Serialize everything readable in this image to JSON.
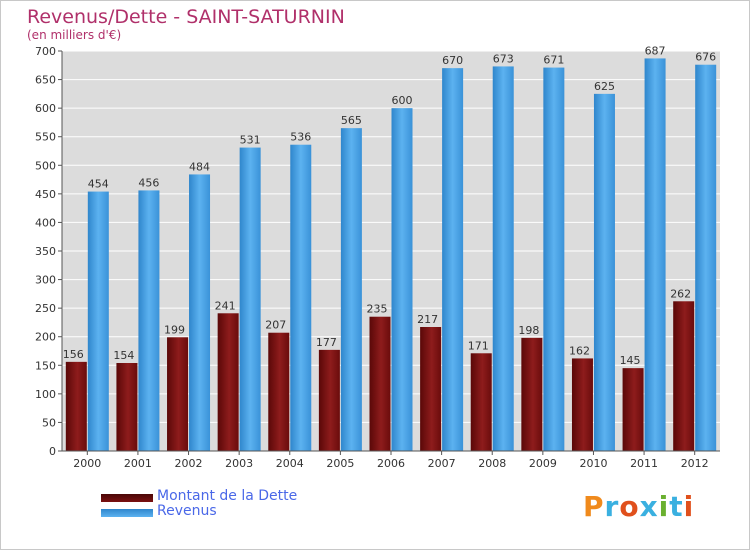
{
  "title": "Revenus/Dette - SAINT-SATURNIN",
  "subtitle": "(en milliers d'€)",
  "brand": {
    "text": "Proxiti",
    "letters": [
      "P",
      "r",
      "o",
      "x",
      "i",
      "t",
      "i"
    ],
    "colors": [
      "#f08a1c",
      "#3ab0e0",
      "#e0501c",
      "#3ab0e0",
      "#6ab030",
      "#3ab0e0",
      "#e0501c"
    ]
  },
  "chart_data": {
    "type": "bar",
    "title": "Revenus/Dette - SAINT-SATURNIN",
    "ylabel": "(en milliers d'€)",
    "xlabel": "",
    "categories": [
      "2000",
      "2001",
      "2002",
      "2003",
      "2004",
      "2005",
      "2006",
      "2007",
      "2008",
      "2009",
      "2010",
      "2011",
      "2012"
    ],
    "series": [
      {
        "name": "Montant de la Dette",
        "color": "#7a1010",
        "values": [
          156,
          154,
          199,
          241,
          207,
          177,
          235,
          217,
          171,
          198,
          162,
          145,
          262
        ]
      },
      {
        "name": "Revenus",
        "color": "#3d9be0",
        "values": [
          454,
          456,
          484,
          531,
          536,
          565,
          600,
          670,
          673,
          671,
          625,
          687,
          676
        ]
      }
    ],
    "ylim": [
      0,
      700
    ],
    "yticks": [
      0,
      50,
      100,
      150,
      200,
      250,
      300,
      350,
      400,
      450,
      500,
      550,
      600,
      650,
      700
    ],
    "grid": true,
    "legend": "bottom-left"
  }
}
